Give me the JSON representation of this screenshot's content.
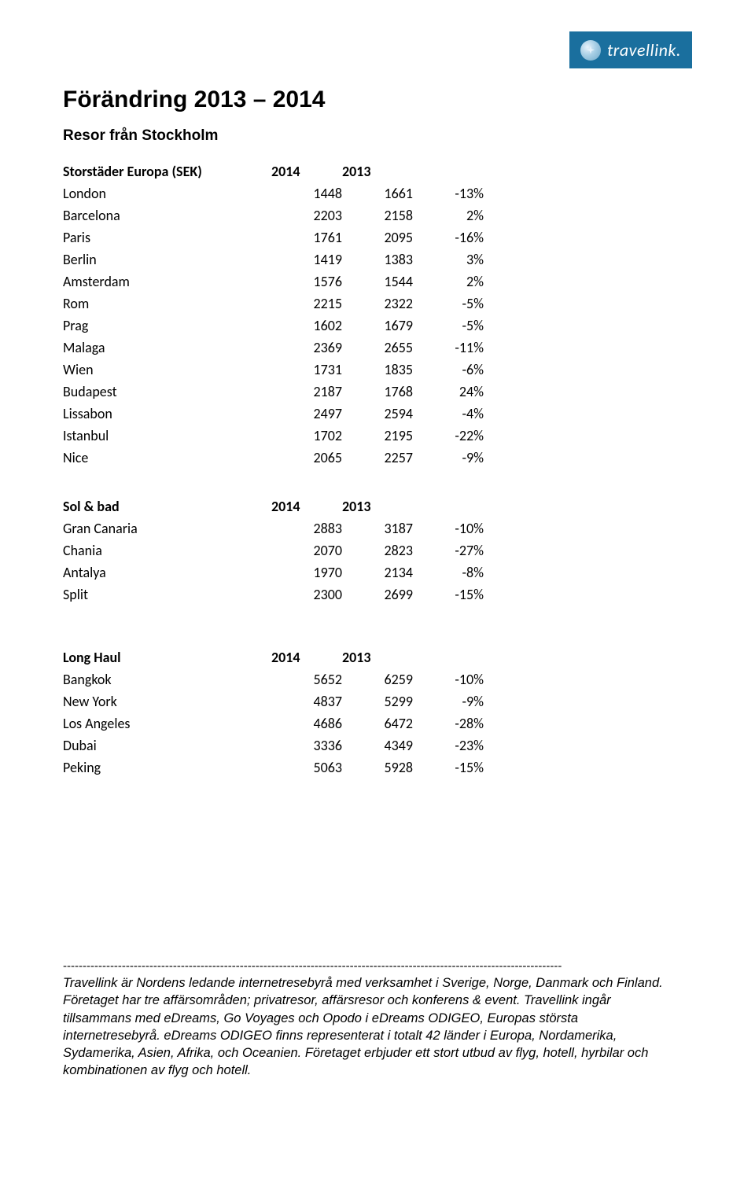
{
  "logo": {
    "brand": "travellink."
  },
  "title": "Förändring 2013 – 2014",
  "subtitle": "Resor från Stockholm",
  "tables": [
    {
      "header": [
        "Storstäder Europa (SEK)",
        "2014",
        "2013",
        ""
      ],
      "rows": [
        [
          "London",
          "1448",
          "1661",
          "-13%"
        ],
        [
          "Barcelona",
          "2203",
          "2158",
          "2%"
        ],
        [
          "Paris",
          "1761",
          "2095",
          "-16%"
        ],
        [
          "Berlin",
          "1419",
          "1383",
          "3%"
        ],
        [
          "Amsterdam",
          "1576",
          "1544",
          "2%"
        ],
        [
          "Rom",
          "2215",
          "2322",
          "-5%"
        ],
        [
          "Prag",
          "1602",
          "1679",
          "-5%"
        ],
        [
          "Malaga",
          "2369",
          "2655",
          "-11%"
        ],
        [
          "Wien",
          "1731",
          "1835",
          "-6%"
        ],
        [
          "Budapest",
          "2187",
          "1768",
          "24%"
        ],
        [
          "Lissabon",
          "2497",
          "2594",
          "-4%"
        ],
        [
          "Istanbul",
          "1702",
          "2195",
          "-22%"
        ],
        [
          "Nice",
          "2065",
          "2257",
          "-9%"
        ]
      ]
    },
    {
      "header": [
        "Sol & bad",
        "2014",
        "2013",
        ""
      ],
      "rows": [
        [
          "Gran Canaria",
          "2883",
          "3187",
          "-10%"
        ],
        [
          "Chania",
          "2070",
          "2823",
          "-27%"
        ],
        [
          "Antalya",
          "1970",
          "2134",
          "-8%"
        ],
        [
          "Split",
          "2300",
          "2699",
          "-15%"
        ]
      ]
    },
    {
      "header": [
        "Long Haul",
        "2014",
        "2013",
        ""
      ],
      "rows": [
        [
          "Bangkok",
          "5652",
          "6259",
          "-10%"
        ],
        [
          "New York",
          "4837",
          "5299",
          "-9%"
        ],
        [
          "Los Angeles",
          "4686",
          "6472",
          "-28%"
        ],
        [
          "Dubai",
          "3336",
          "4349",
          "-23%"
        ],
        [
          "Peking",
          "5063",
          "5928",
          "-15%"
        ]
      ]
    }
  ],
  "divider": "-------------------------------------------------------------------------------------------------------------------------------",
  "footer": "Travellink är Nordens ledande internetresebyrå med verksamhet i Sverige, Norge, Danmark och Finland. Företaget har tre affärsområden; privatresor, affärsresor och konferens & event. Travellink ingår tillsammans med eDreams, Go Voyages och Opodo i eDreams ODIGEO, Europas största internetresebyrå. eDreams ODIGEO finns representerat i totalt 42 länder i Europa, Nordamerika, Sydamerika, Asien, Afrika, och Oceanien. Företaget erbjuder ett stort utbud av flyg, hotell, hyrbilar och kombinationen av flyg och hotell."
}
